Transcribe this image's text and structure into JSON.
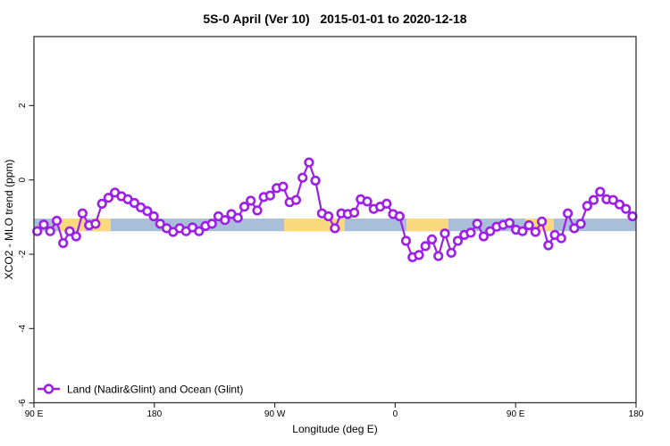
{
  "title": "5S-0 April (Ver 10)   2015-01-01 to 2020-12-18",
  "colors": {
    "series_purple": "#9D1FE8",
    "band_blue": "#A9BED9",
    "band_yellow": "#FBD87E",
    "axis": "#333333"
  },
  "chart_data": {
    "type": "line",
    "title": "5S-0 April (Ver 10)   2015-01-01 to 2020-12-18",
    "xlabel": "Longitude (deg E)",
    "ylabel": "XCO2 - MLO trend (ppm)",
    "grid": "off",
    "x_axis": {
      "note": "longitude wraps eastward: 90E to 180 to 90W to 0 to 90E to 180",
      "tick_labels": [
        "90 E",
        "180",
        "90 W",
        "0",
        "90 E",
        "180"
      ],
      "tick_positions_extended_lon": [
        90,
        180,
        270,
        360,
        450,
        540
      ],
      "range_extended_lon": [
        90,
        540
      ]
    },
    "y_axis": {
      "tick_labels": [
        "2",
        "0",
        "-2",
        "-4",
        "-6"
      ],
      "tick_values": [
        2,
        0,
        -2,
        -4,
        -6
      ],
      "range": [
        -6.0,
        3.86
      ]
    },
    "band": {
      "name": "coverage-band",
      "y_top": -1.04,
      "y_bottom": -1.38,
      "base_color": "#A9BED9",
      "base_range_extended_lon": [
        90,
        540
      ],
      "yellow_color": "#FBD87E",
      "yellow_segments_extended_lon": [
        [
          108.7,
          128.7
        ],
        [
          134.1,
          147.4
        ],
        [
          277.0,
          322.3
        ],
        [
          368.4,
          399.8
        ],
        [
          457.2,
          478.6
        ]
      ]
    },
    "legend": {
      "position": "bottom-left",
      "label": "Land (Nadir&Glint) and Ocean (Glint)"
    },
    "series": [
      {
        "name": "Land (Nadir&Glint) and Ocean (Glint)",
        "color": "#9D1FE8",
        "marker": "open-circle",
        "x_start_extended_lon": 92.5,
        "x_step_deg": 4.835,
        "values": [
          -1.38,
          -1.2,
          -1.38,
          -1.1,
          -1.7,
          -1.38,
          -1.52,
          -0.9,
          -1.22,
          -1.18,
          -0.64,
          -0.48,
          -0.34,
          -0.44,
          -0.52,
          -0.62,
          -0.74,
          -0.84,
          -0.98,
          -1.18,
          -1.3,
          -1.4,
          -1.3,
          -1.38,
          -1.28,
          -1.38,
          -1.24,
          -1.18,
          -0.98,
          -1.08,
          -0.92,
          -1.02,
          -0.72,
          -0.56,
          -0.82,
          -0.46,
          -0.42,
          -0.22,
          -0.18,
          -0.6,
          -0.54,
          0.06,
          0.47,
          -0.02,
          -0.9,
          -0.98,
          -1.3,
          -0.9,
          -0.92,
          -0.88,
          -0.52,
          -0.58,
          -0.78,
          -0.72,
          -0.64,
          -0.92,
          -0.98,
          -1.64,
          -2.08,
          -2.02,
          -1.78,
          -1.6,
          -2.05,
          -1.44,
          -1.96,
          -1.64,
          -1.48,
          -1.42,
          -1.18,
          -1.52,
          -1.38,
          -1.26,
          -1.21,
          -1.16,
          -1.34,
          -1.38,
          -1.22,
          -1.4,
          -1.12,
          -1.76,
          -1.48,
          -1.57,
          -0.9,
          -1.3,
          -1.18,
          -0.7,
          -0.54,
          -0.32,
          -0.52,
          -0.54,
          -0.66,
          -0.78,
          -0.98
        ]
      }
    ]
  }
}
